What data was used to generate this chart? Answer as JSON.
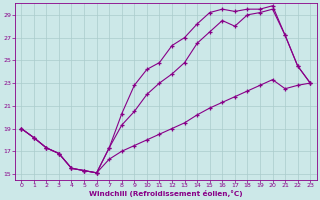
{
  "xlabel": "Windchill (Refroidissement éolien,°C)",
  "bg_color": "#cce8e8",
  "line_color": "#880088",
  "grid_color": "#aacccc",
  "xlim": [
    -0.5,
    23.5
  ],
  "ylim": [
    14.5,
    30.0
  ],
  "yticks": [
    15,
    17,
    19,
    21,
    23,
    25,
    27,
    29
  ],
  "xticks": [
    0,
    1,
    2,
    3,
    4,
    5,
    6,
    7,
    8,
    9,
    10,
    11,
    12,
    13,
    14,
    15,
    16,
    17,
    18,
    19,
    20,
    21,
    22,
    23
  ],
  "line_upper_x": [
    0,
    1,
    2,
    3,
    4,
    5,
    6,
    7,
    8,
    9,
    10,
    11,
    12,
    13,
    14,
    15,
    16,
    17,
    18,
    19,
    20,
    21,
    22,
    23
  ],
  "line_upper_y": [
    19.0,
    18.2,
    17.3,
    16.8,
    15.5,
    15.3,
    15.1,
    17.3,
    20.3,
    22.8,
    24.2,
    24.8,
    26.3,
    27.0,
    28.2,
    29.2,
    29.5,
    29.3,
    29.5,
    29.5,
    29.8,
    27.2,
    24.5,
    23.0
  ],
  "line_lower_x": [
    0,
    1,
    2,
    3,
    4,
    5,
    6,
    7,
    8,
    9,
    10,
    11,
    12,
    13,
    14,
    15,
    16,
    17,
    18,
    19,
    20,
    21,
    22,
    23
  ],
  "line_lower_y": [
    19.0,
    18.2,
    17.3,
    16.8,
    15.5,
    15.3,
    15.1,
    17.3,
    19.3,
    20.5,
    22.0,
    23.0,
    23.8,
    24.8,
    26.5,
    27.5,
    28.5,
    28.0,
    29.0,
    29.2,
    29.5,
    27.2,
    24.5,
    23.0
  ],
  "line_diag_x": [
    0,
    1,
    2,
    3,
    4,
    5,
    6,
    7,
    8,
    9,
    10,
    11,
    12,
    13,
    14,
    15,
    16,
    17,
    18,
    19,
    20,
    21,
    22,
    23
  ],
  "line_diag_y": [
    19.0,
    18.2,
    17.3,
    16.8,
    15.5,
    15.3,
    15.1,
    16.3,
    17.0,
    17.5,
    18.0,
    18.5,
    19.0,
    19.5,
    20.2,
    20.8,
    21.3,
    21.8,
    22.3,
    22.8,
    23.3,
    22.5,
    22.8,
    23.0
  ]
}
